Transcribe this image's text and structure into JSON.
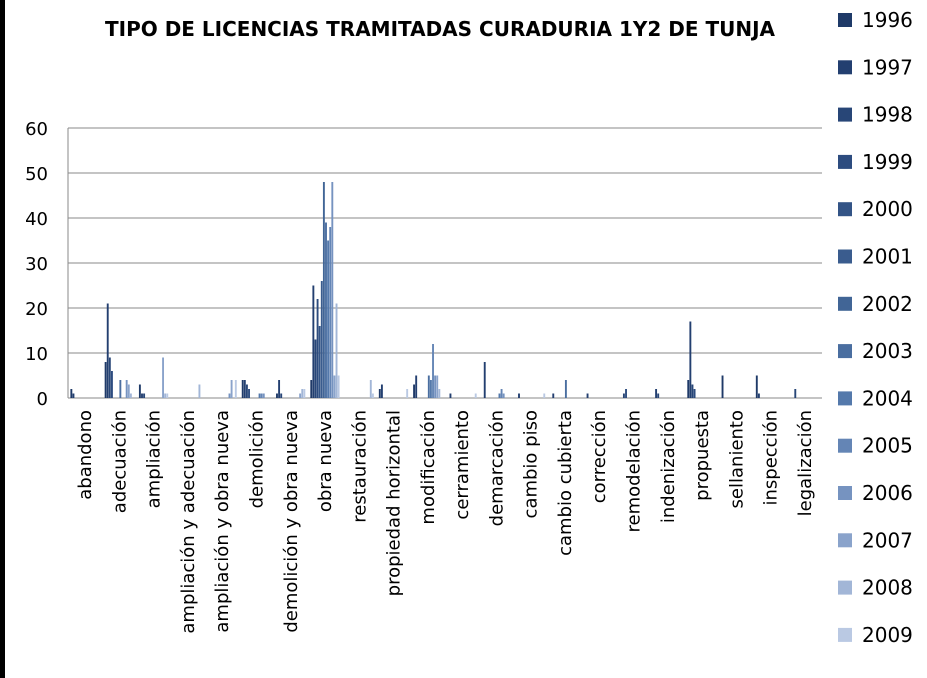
{
  "chart_data": {
    "type": "bar",
    "title": "TIPO DE LICENCIAS TRAMITADAS CURADURIA 1Y2 DE TUNJA",
    "categories": [
      "abandono",
      "adecuación",
      "ampliación",
      "ampliación y adecuación",
      "ampliación y obra nueva",
      "demolición",
      "demolición y obra nueva",
      "obra nueva",
      "restauración",
      "propiedad horizontal",
      "modificación",
      "cerramiento",
      "demarcación",
      "cambio piso",
      "cambio cubierta",
      "corrección",
      "remodelación",
      "indenización",
      "propuesta",
      "sellaniento",
      "inspección",
      "legalización"
    ],
    "series": [
      {
        "name": "1996",
        "color": "#1f3a68",
        "values": [
          2,
          8,
          3,
          0,
          0,
          4,
          1,
          4,
          0,
          2,
          3,
          0,
          0,
          0,
          0,
          0,
          0,
          0,
          4,
          5,
          5,
          0
        ]
      },
      {
        "name": "1997",
        "color": "#233f70",
        "values": [
          1,
          21,
          1,
          0,
          0,
          4,
          4,
          25,
          0,
          3,
          5,
          1,
          8,
          1,
          1,
          1,
          0,
          2,
          17,
          0,
          1,
          0
        ]
      },
      {
        "name": "1998",
        "color": "#284677",
        "values": [
          0,
          9,
          1,
          0,
          0,
          3,
          1,
          13,
          0,
          0,
          0,
          0,
          0,
          0,
          0,
          0,
          1,
          1,
          3,
          0,
          0,
          2
        ]
      },
      {
        "name": "1999",
        "color": "#2d4c7f",
        "values": [
          0,
          6,
          0,
          0,
          0,
          2,
          0,
          22,
          0,
          0,
          0,
          0,
          0,
          0,
          0,
          0,
          2,
          0,
          2,
          0,
          0,
          0
        ]
      },
      {
        "name": "2000",
        "color": "#335486",
        "values": [
          0,
          0,
          0,
          0,
          0,
          0,
          0,
          16,
          0,
          0,
          0,
          0,
          0,
          0,
          0,
          0,
          0,
          0,
          0,
          0,
          0,
          0
        ]
      },
      {
        "name": "2001",
        "color": "#3a5c8e",
        "values": [
          0,
          0,
          0,
          0,
          0,
          0,
          0,
          26,
          0,
          0,
          0,
          0,
          0,
          0,
          0,
          0,
          0,
          0,
          0,
          0,
          0,
          0
        ]
      },
      {
        "name": "2002",
        "color": "#416596",
        "values": [
          0,
          0,
          0,
          0,
          0,
          0,
          0,
          48,
          0,
          0,
          0,
          0,
          0,
          0,
          0,
          0,
          0,
          0,
          0,
          0,
          0,
          0
        ]
      },
      {
        "name": "2003",
        "color": "#4a6ea0",
        "values": [
          0,
          4,
          0,
          0,
          0,
          0,
          0,
          39,
          0,
          0,
          5,
          0,
          0,
          0,
          4,
          0,
          0,
          0,
          0,
          0,
          0,
          0
        ]
      },
      {
        "name": "2004",
        "color": "#5479ab",
        "values": [
          0,
          0,
          0,
          0,
          0,
          1,
          0,
          35,
          0,
          0,
          4,
          0,
          1,
          0,
          0,
          0,
          0,
          0,
          0,
          0,
          0,
          0
        ]
      },
      {
        "name": "2005",
        "color": "#6485b5",
        "values": [
          0,
          0,
          0,
          0,
          0,
          1,
          0,
          38,
          0,
          0,
          12,
          0,
          2,
          0,
          0,
          0,
          0,
          0,
          0,
          0,
          0,
          0
        ]
      },
      {
        "name": "2006",
        "color": "#7693c0",
        "values": [
          0,
          4,
          0,
          0,
          1,
          1,
          0,
          48,
          0,
          0,
          5,
          0,
          1,
          0,
          0,
          0,
          0,
          0,
          0,
          0,
          0,
          0
        ]
      },
      {
        "name": "2007",
        "color": "#8aa3cb",
        "values": [
          0,
          3,
          9,
          0,
          4,
          0,
          1,
          5,
          0,
          0,
          5,
          0,
          0,
          0,
          0,
          0,
          0,
          0,
          0,
          0,
          0,
          0
        ]
      },
      {
        "name": "2008",
        "color": "#a2b6d7",
        "values": [
          0,
          1,
          1,
          3,
          0,
          0,
          2,
          21,
          4,
          0,
          2,
          0,
          0,
          0,
          0,
          0,
          0,
          0,
          0,
          0,
          0,
          0
        ]
      },
      {
        "name": "2009",
        "color": "#bac9e3",
        "values": [
          0,
          0,
          1,
          0,
          4,
          0,
          2,
          5,
          1,
          2,
          0,
          1,
          0,
          1,
          0,
          0,
          0,
          0,
          0,
          0,
          0,
          0
        ]
      }
    ],
    "ylim": [
      0,
      60
    ],
    "yticks": [
      0,
      10,
      20,
      30,
      40,
      50,
      60
    ],
    "grid": true,
    "legend": "right"
  }
}
